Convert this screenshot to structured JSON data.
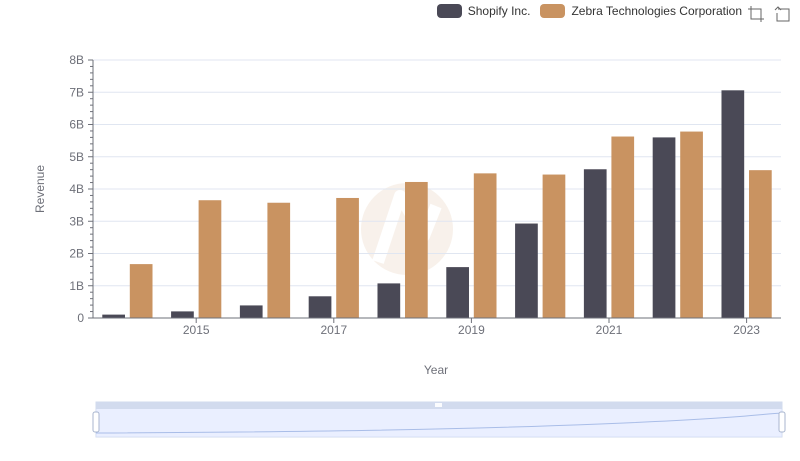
{
  "legend": {
    "items": [
      {
        "label": "Shopify Inc.",
        "color": "#4a4956"
      },
      {
        "label": "Zebra Technologies Corporation",
        "color": "#c99361"
      }
    ]
  },
  "toolbox": {
    "icons": [
      "zoom-select-icon",
      "zoom-reset-icon"
    ]
  },
  "chart_data": {
    "type": "bar",
    "categories": [
      "2014",
      "2015",
      "2016",
      "2017",
      "2018",
      "2019",
      "2020",
      "2021",
      "2022",
      "2023"
    ],
    "x_tick_labels": [
      "2015",
      "2017",
      "2019",
      "2021",
      "2023"
    ],
    "xlabel": "Year",
    "ylabel": "Revenue",
    "ylim": [
      0,
      8000000000
    ],
    "y_tick_labels": [
      "0",
      "1B",
      "2B",
      "3B",
      "4B",
      "5B",
      "6B",
      "7B",
      "8B"
    ],
    "grid": true,
    "legend_position": "top-right",
    "series": [
      {
        "name": "Shopify Inc.",
        "color": "#4a4956",
        "values": [
          105000000,
          205000000,
          390000000,
          673000000,
          1073000000,
          1578000000,
          2929000000,
          4612000000,
          5600000000,
          7060000000
        ]
      },
      {
        "name": "Zebra Technologies Corporation",
        "color": "#c99361",
        "values": [
          1671000000,
          3652000000,
          3574000000,
          3722000000,
          4218000000,
          4485000000,
          4448000000,
          5627000000,
          5781000000,
          4584000000
        ]
      }
    ]
  }
}
